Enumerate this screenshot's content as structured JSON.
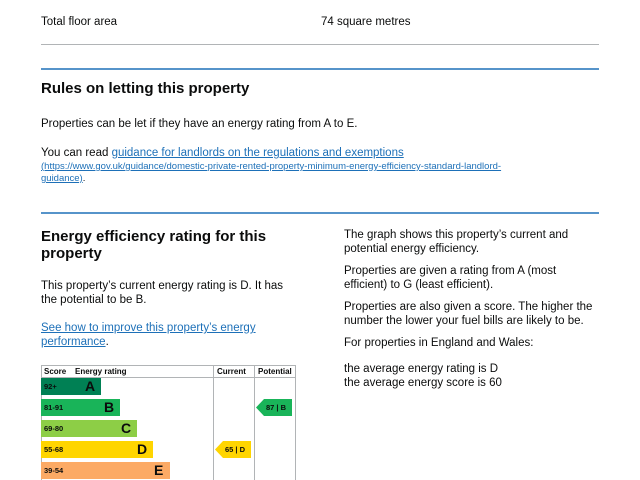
{
  "floor_area": {
    "label": "Total floor area",
    "value": "74 square metres"
  },
  "letting": {
    "heading": "Rules on letting this property",
    "para1": "Properties can be let if they have an energy rating from A to E.",
    "para2_prefix": "You can read ",
    "para2_link": "guidance for landlords on the regulations and exemptions",
    "para2_url_line1": "(https://www.gov.uk/guidance/domestic-private-rented-property-minimum-energy-efficiency-standard-landlord-",
    "para2_url_line2": "guidance)",
    "para2_suffix": "."
  },
  "efficiency": {
    "heading_line1": "Energy efficiency rating for this",
    "heading_line2": "property",
    "current_line1": "This property’s current energy rating is D. It has",
    "current_line2": "the potential to be B.",
    "improve_link_line1": "See how to improve this property’s energy",
    "improve_link_line2": "performance",
    "improve_suffix": "."
  },
  "side_text": {
    "p1_line1": "The graph shows this property’s current and",
    "p1_line2": "potential energy efficiency.",
    "p2_line1": "Properties are given a rating from A (most",
    "p2_line2": "efficient) to G (least efficient).",
    "p3_line1": "Properties are also given a score. The higher the",
    "p3_line2": "number the lower your fuel bills are likely to be.",
    "p4": "For properties in England and Wales:",
    "p5_line1": "the average energy rating is D",
    "p5_line2": "the average energy score is 60"
  },
  "epc_chart": {
    "headers": {
      "score": "Score",
      "rating": "Energy rating",
      "current": "Current",
      "potential": "Potential"
    },
    "bands": [
      {
        "score": "92+",
        "letter": "A",
        "color": "#008054"
      },
      {
        "score": "81-91",
        "letter": "B",
        "color": "#19b459"
      },
      {
        "score": "69-80",
        "letter": "C",
        "color": "#8dce46"
      },
      {
        "score": "55-68",
        "letter": "D",
        "color": "#ffd500"
      },
      {
        "score": "39-54",
        "letter": "E",
        "color": "#fcaa65"
      }
    ],
    "current": {
      "label": "65 | D",
      "color": "#ffd500"
    },
    "potential": {
      "label": "87 | B",
      "color": "#19b459"
    }
  }
}
